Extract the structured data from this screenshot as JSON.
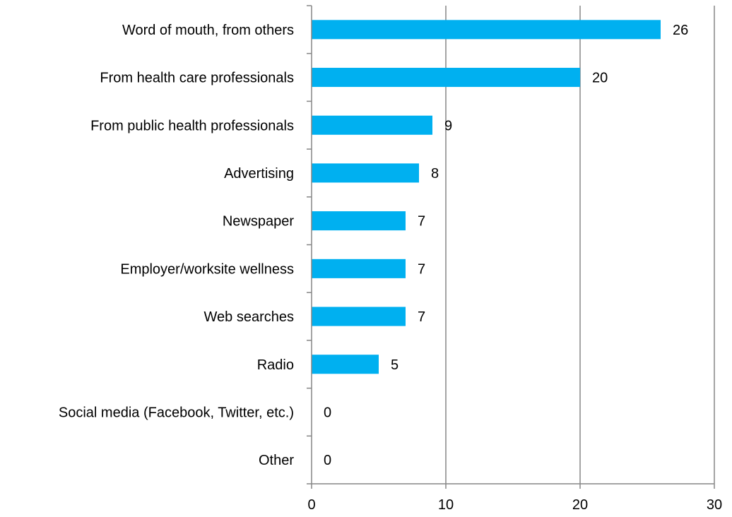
{
  "chart_data": {
    "type": "bar",
    "orientation": "horizontal",
    "categories": [
      "Word of mouth, from others",
      "From health care professionals",
      "From public health professionals",
      "Advertising",
      "Newspaper",
      "Employer/worksite wellness",
      "Web searches",
      "Radio",
      "Social media (Facebook, Twitter, etc.)",
      "Other"
    ],
    "values": [
      26,
      20,
      9,
      8,
      7,
      7,
      7,
      5,
      0,
      0
    ],
    "data_labels": [
      "26",
      "20",
      "9",
      "8",
      "7",
      "7",
      "7",
      "5",
      "0",
      "0"
    ],
    "xlim": [
      0,
      30
    ],
    "xticks": [
      0,
      10,
      20,
      30
    ],
    "xtick_labels": [
      "0",
      "10",
      "20",
      "30"
    ],
    "grid": "vertical",
    "legend": "none",
    "bar_color": "#00b0f0",
    "grid_color": "#868686"
  }
}
